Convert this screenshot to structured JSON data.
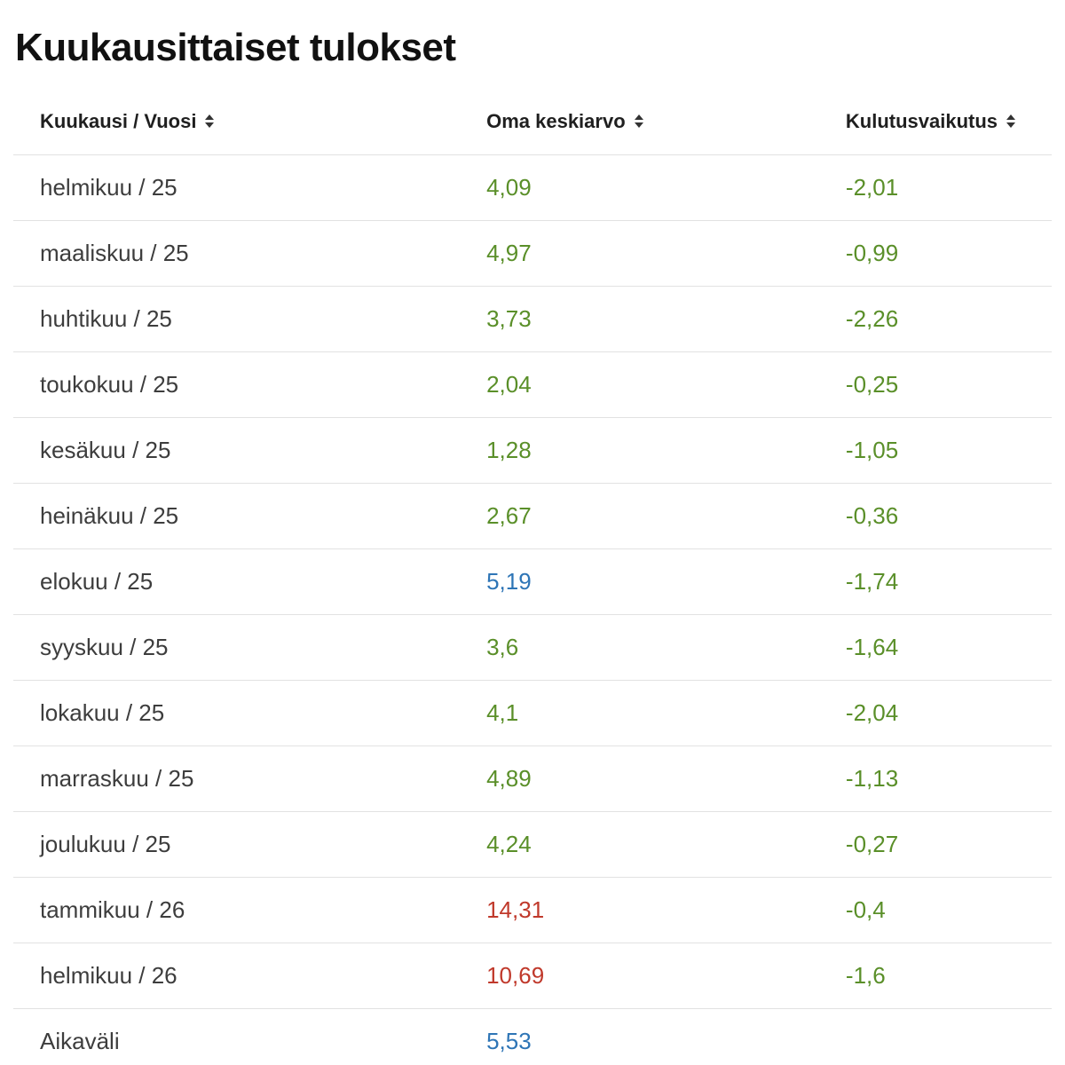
{
  "page": {
    "title": "Kuukausittaiset tulokset"
  },
  "table": {
    "columns": [
      {
        "label": "Kuukausi / Vuosi"
      },
      {
        "label": "Oma keskiarvo"
      },
      {
        "label": "Kulutusvaikutus"
      }
    ],
    "colors": {
      "green": "#5a8f29",
      "blue": "#2e75b6",
      "red": "#c0392b",
      "default": "#3d3d3d"
    },
    "rows": [
      {
        "month": "helmikuu / 25",
        "avg": "4,09",
        "avg_color": "green",
        "impact": "-2,01",
        "impact_color": "green"
      },
      {
        "month": "maaliskuu / 25",
        "avg": "4,97",
        "avg_color": "green",
        "impact": "-0,99",
        "impact_color": "green"
      },
      {
        "month": "huhtikuu / 25",
        "avg": "3,73",
        "avg_color": "green",
        "impact": "-2,26",
        "impact_color": "green"
      },
      {
        "month": "toukokuu / 25",
        "avg": "2,04",
        "avg_color": "green",
        "impact": "-0,25",
        "impact_color": "green"
      },
      {
        "month": "kesäkuu / 25",
        "avg": "1,28",
        "avg_color": "green",
        "impact": "-1,05",
        "impact_color": "green"
      },
      {
        "month": "heinäkuu / 25",
        "avg": "2,67",
        "avg_color": "green",
        "impact": "-0,36",
        "impact_color": "green"
      },
      {
        "month": "elokuu / 25",
        "avg": "5,19",
        "avg_color": "blue",
        "impact": "-1,74",
        "impact_color": "green"
      },
      {
        "month": "syyskuu / 25",
        "avg": "3,6",
        "avg_color": "green",
        "impact": "-1,64",
        "impact_color": "green"
      },
      {
        "month": "lokakuu / 25",
        "avg": "4,1",
        "avg_color": "green",
        "impact": "-2,04",
        "impact_color": "green"
      },
      {
        "month": "marraskuu / 25",
        "avg": "4,89",
        "avg_color": "green",
        "impact": "-1,13",
        "impact_color": "green"
      },
      {
        "month": "joulukuu / 25",
        "avg": "4,24",
        "avg_color": "green",
        "impact": "-0,27",
        "impact_color": "green"
      },
      {
        "month": "tammikuu / 26",
        "avg": "14,31",
        "avg_color": "red",
        "impact": "-0,4",
        "impact_color": "green"
      },
      {
        "month": "helmikuu / 26",
        "avg": "10,69",
        "avg_color": "red",
        "impact": "-1,6",
        "impact_color": "green"
      },
      {
        "month": "Aikaväli",
        "avg": "5,53",
        "avg_color": "blue",
        "impact": "",
        "impact_color": "default"
      }
    ]
  }
}
